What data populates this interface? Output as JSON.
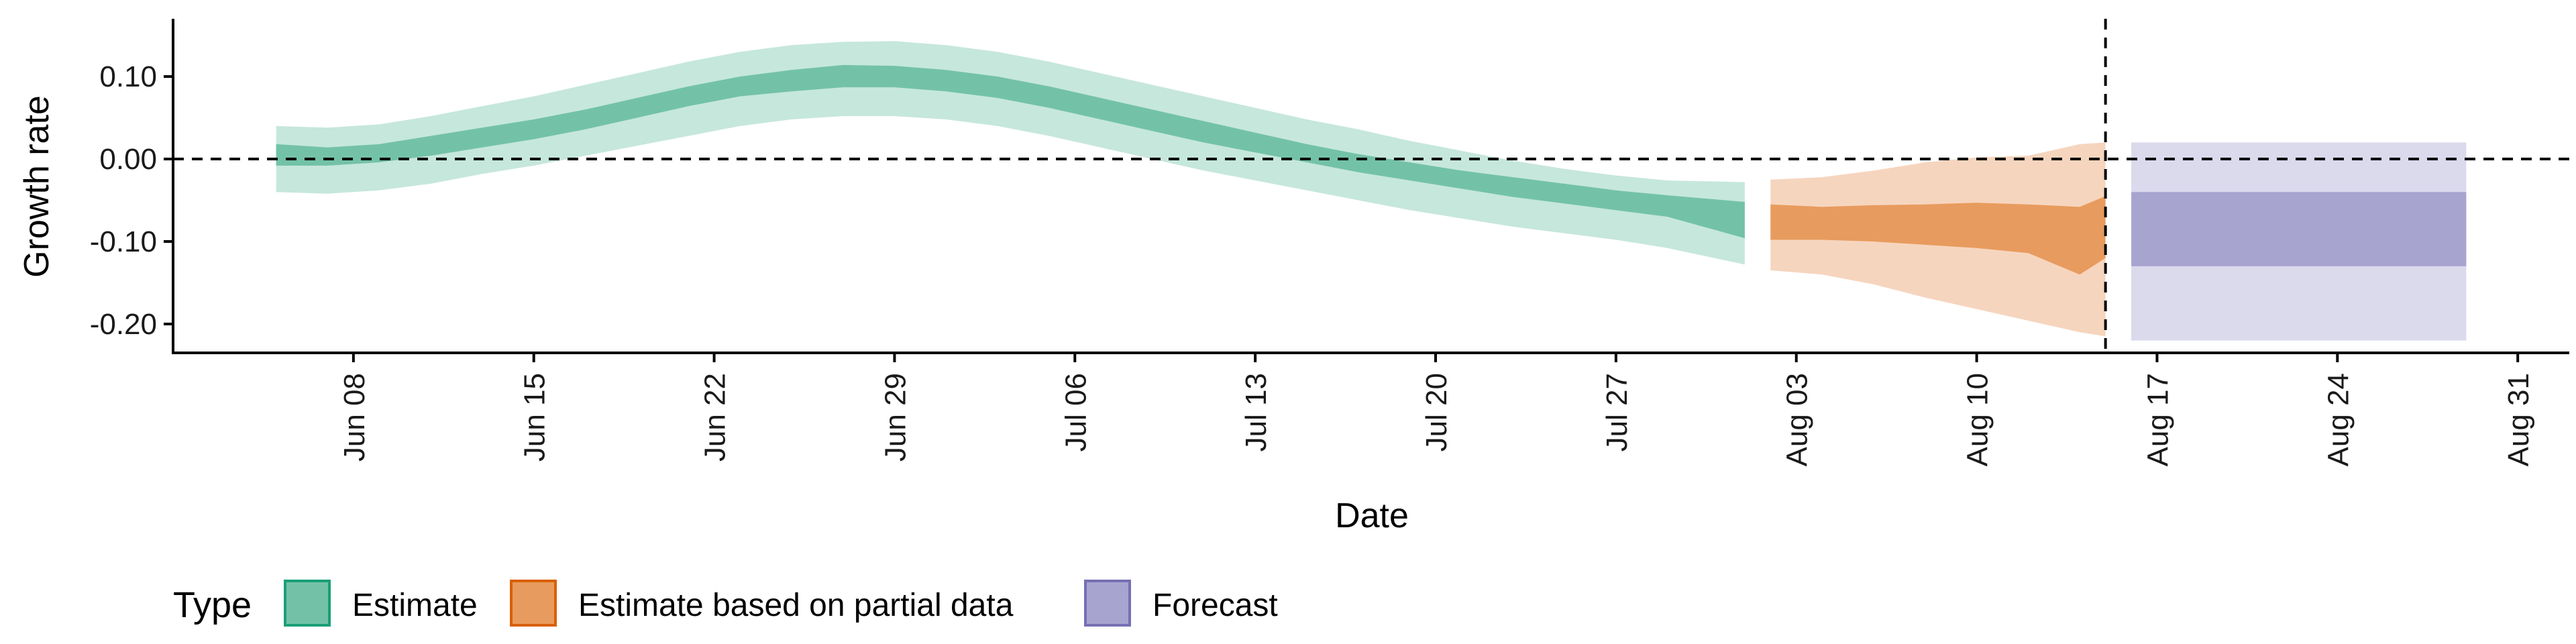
{
  "chart_data": {
    "type": "area",
    "title": "",
    "xlabel": "Date",
    "ylabel": "Growth rate",
    "ylim": [
      -0.235,
      0.17
    ],
    "x_domain": [
      "2020-06-01",
      "2020-09-02"
    ],
    "y_ticks": [
      0.1,
      0.0,
      -0.1,
      -0.2
    ],
    "y_tick_labels": [
      "0.10",
      "0.00",
      "-0.10",
      "-0.20"
    ],
    "x_ticks": [
      "2020-06-08",
      "2020-06-15",
      "2020-06-22",
      "2020-06-29",
      "2020-07-06",
      "2020-07-13",
      "2020-07-20",
      "2020-07-27",
      "2020-08-03",
      "2020-08-10",
      "2020-08-17",
      "2020-08-24",
      "2020-08-31"
    ],
    "x_tick_labels": [
      "Jun 08",
      "Jun 15",
      "Jun 22",
      "Jun 29",
      "Jul 06",
      "Jul 13",
      "Jul 20",
      "Jul 27",
      "Aug 03",
      "Aug 10",
      "Aug 17",
      "Aug 24",
      "Aug 31"
    ],
    "reference_lines": {
      "horizontal_y": 0.0,
      "vertical_x": "2020-08-15"
    },
    "legend": {
      "title": "Type",
      "position": "bottom",
      "entries": [
        {
          "label": "Estimate",
          "color": "#1b9e77"
        },
        {
          "label": "Estimate based on partial data",
          "color": "#d95f02"
        },
        {
          "label": "Forecast",
          "color": "#7570b3"
        }
      ]
    },
    "series": [
      {
        "type": "Estimate",
        "fill_color": "#73c2a8",
        "outer_color": "#c6e7dc",
        "points": [
          {
            "date": "2020-06-05",
            "lo90": -0.04,
            "lo50": -0.008,
            "hi50": 0.018,
            "hi90": 0.04
          },
          {
            "date": "2020-06-07",
            "lo90": -0.042,
            "lo50": -0.008,
            "hi50": 0.014,
            "hi90": 0.038
          },
          {
            "date": "2020-06-09",
            "lo90": -0.038,
            "lo50": -0.004,
            "hi50": 0.018,
            "hi90": 0.042
          },
          {
            "date": "2020-06-11",
            "lo90": -0.03,
            "lo50": 0.004,
            "hi50": 0.028,
            "hi90": 0.052
          },
          {
            "date": "2020-06-13",
            "lo90": -0.018,
            "lo50": 0.014,
            "hi50": 0.038,
            "hi90": 0.064
          },
          {
            "date": "2020-06-15",
            "lo90": -0.008,
            "lo50": 0.024,
            "hi50": 0.048,
            "hi90": 0.076
          },
          {
            "date": "2020-06-17",
            "lo90": 0.004,
            "lo50": 0.036,
            "hi50": 0.06,
            "hi90": 0.09
          },
          {
            "date": "2020-06-19",
            "lo90": 0.016,
            "lo50": 0.05,
            "hi50": 0.074,
            "hi90": 0.104
          },
          {
            "date": "2020-06-21",
            "lo90": 0.028,
            "lo50": 0.064,
            "hi50": 0.088,
            "hi90": 0.118
          },
          {
            "date": "2020-06-23",
            "lo90": 0.04,
            "lo50": 0.076,
            "hi50": 0.1,
            "hi90": 0.13
          },
          {
            "date": "2020-06-25",
            "lo90": 0.048,
            "lo50": 0.082,
            "hi50": 0.108,
            "hi90": 0.138
          },
          {
            "date": "2020-06-27",
            "lo90": 0.052,
            "lo50": 0.087,
            "hi50": 0.114,
            "hi90": 0.142
          },
          {
            "date": "2020-06-29",
            "lo90": 0.052,
            "lo50": 0.087,
            "hi50": 0.113,
            "hi90": 0.143
          },
          {
            "date": "2020-07-01",
            "lo90": 0.048,
            "lo50": 0.082,
            "hi50": 0.108,
            "hi90": 0.138
          },
          {
            "date": "2020-07-03",
            "lo90": 0.04,
            "lo50": 0.074,
            "hi50": 0.1,
            "hi90": 0.13
          },
          {
            "date": "2020-07-05",
            "lo90": 0.028,
            "lo50": 0.062,
            "hi50": 0.088,
            "hi90": 0.118
          },
          {
            "date": "2020-07-07",
            "lo90": 0.014,
            "lo50": 0.048,
            "hi50": 0.074,
            "hi90": 0.104
          },
          {
            "date": "2020-07-09",
            "lo90": 0.0,
            "lo50": 0.034,
            "hi50": 0.06,
            "hi90": 0.09
          },
          {
            "date": "2020-07-11",
            "lo90": -0.014,
            "lo50": 0.02,
            "hi50": 0.046,
            "hi90": 0.076
          },
          {
            "date": "2020-07-13",
            "lo90": -0.026,
            "lo50": 0.008,
            "hi50": 0.032,
            "hi90": 0.062
          },
          {
            "date": "2020-07-15",
            "lo90": -0.038,
            "lo50": -0.004,
            "hi50": 0.018,
            "hi90": 0.048
          },
          {
            "date": "2020-07-17",
            "lo90": -0.05,
            "lo50": -0.016,
            "hi50": 0.006,
            "hi90": 0.036
          },
          {
            "date": "2020-07-19",
            "lo90": -0.062,
            "lo50": -0.026,
            "hi50": -0.004,
            "hi90": 0.022
          },
          {
            "date": "2020-07-21",
            "lo90": -0.072,
            "lo50": -0.036,
            "hi50": -0.014,
            "hi90": 0.01
          },
          {
            "date": "2020-07-23",
            "lo90": -0.082,
            "lo50": -0.046,
            "hi50": -0.022,
            "hi90": -0.002
          },
          {
            "date": "2020-07-25",
            "lo90": -0.09,
            "lo50": -0.054,
            "hi50": -0.03,
            "hi90": -0.012
          },
          {
            "date": "2020-07-27",
            "lo90": -0.098,
            "lo50": -0.062,
            "hi50": -0.038,
            "hi90": -0.02
          },
          {
            "date": "2020-07-29",
            "lo90": -0.108,
            "lo50": -0.07,
            "hi50": -0.044,
            "hi90": -0.026
          },
          {
            "date": "2020-08-01",
            "lo90": -0.128,
            "lo50": -0.096,
            "hi50": -0.052,
            "hi90": -0.028
          }
        ]
      },
      {
        "type": "Estimate based on partial data",
        "fill_color": "#e89b5e",
        "outer_color": "#f6d5be",
        "points": [
          {
            "date": "2020-08-02",
            "lo90": -0.135,
            "lo50": -0.098,
            "hi50": -0.055,
            "hi90": -0.025
          },
          {
            "date": "2020-08-04",
            "lo90": -0.14,
            "lo50": -0.098,
            "hi50": -0.058,
            "hi90": -0.022
          },
          {
            "date": "2020-08-06",
            "lo90": -0.152,
            "lo50": -0.1,
            "hi50": -0.056,
            "hi90": -0.014
          },
          {
            "date": "2020-08-08",
            "lo90": -0.168,
            "lo50": -0.104,
            "hi50": -0.055,
            "hi90": -0.004
          },
          {
            "date": "2020-08-10",
            "lo90": -0.182,
            "lo50": -0.108,
            "hi50": -0.053,
            "hi90": 0.002
          },
          {
            "date": "2020-08-12",
            "lo90": -0.196,
            "lo50": -0.114,
            "hi50": -0.055,
            "hi90": 0.004
          },
          {
            "date": "2020-08-14",
            "lo90": -0.21,
            "lo50": -0.14,
            "hi50": -0.058,
            "hi90": 0.018
          },
          {
            "date": "2020-08-15",
            "lo90": -0.215,
            "lo50": -0.12,
            "hi50": -0.045,
            "hi90": 0.02
          }
        ]
      },
      {
        "type": "Forecast",
        "fill_color": "#a8a4d0",
        "outer_color": "#dbd9ec",
        "points": [
          {
            "date": "2020-08-16",
            "lo90": -0.22,
            "lo50": -0.13,
            "hi50": -0.04,
            "hi90": 0.02
          },
          {
            "date": "2020-08-29",
            "lo90": -0.22,
            "lo50": -0.13,
            "hi50": -0.04,
            "hi90": 0.02
          }
        ]
      }
    ]
  }
}
